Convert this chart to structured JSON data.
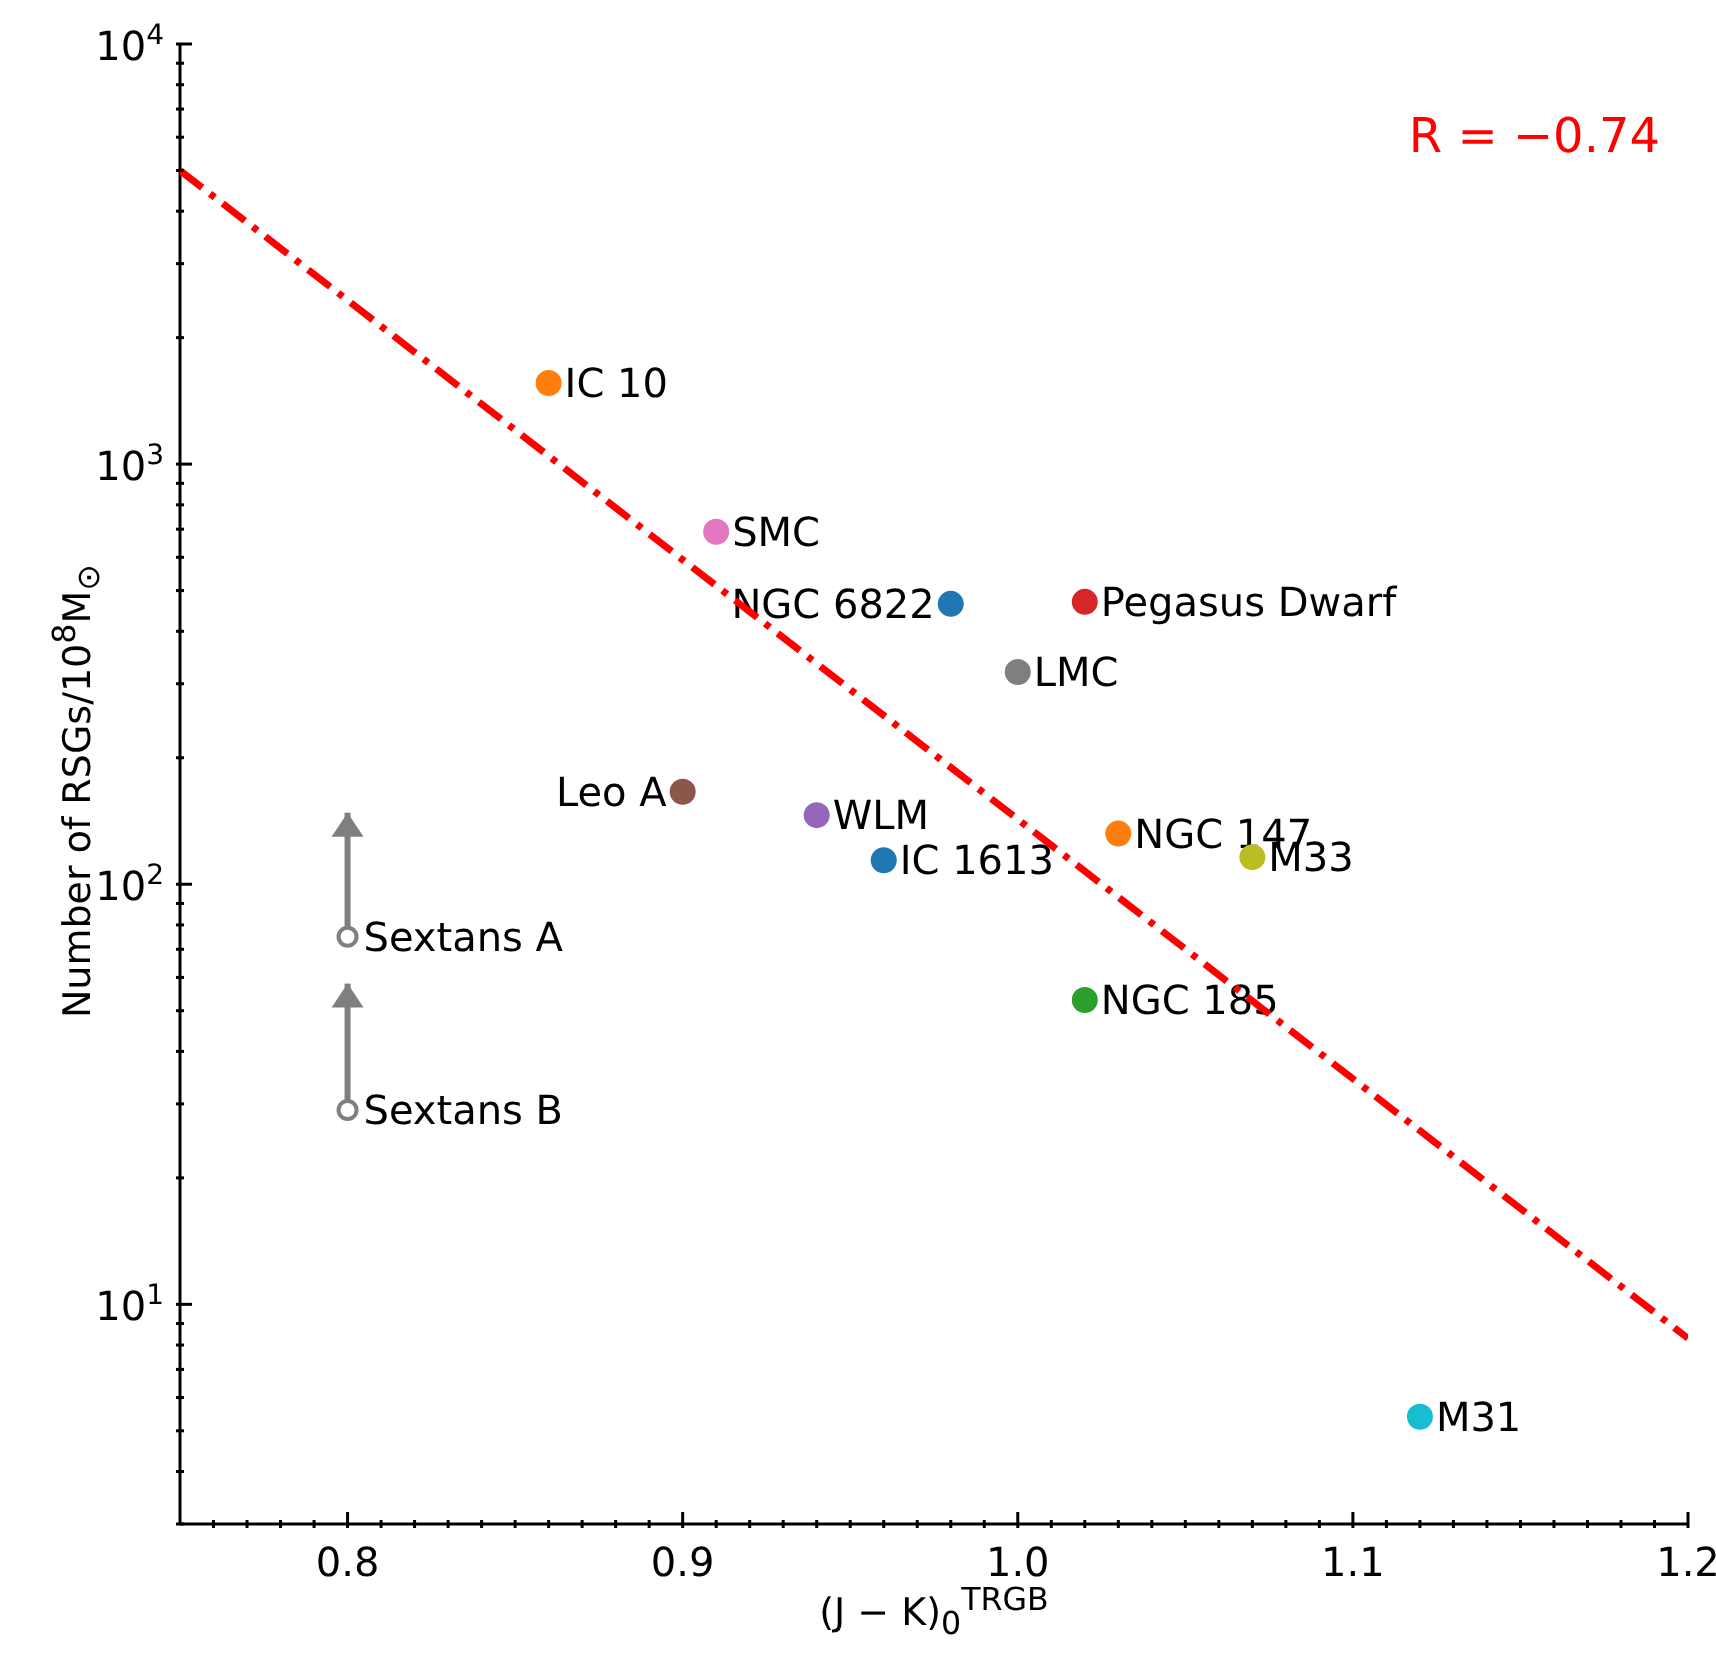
{
  "chart_data": {
    "type": "scatter",
    "xlabel": "(J − K)$_{0}$$^{TRGB}$",
    "ylabel": "Number of RSGs/10$^{8}$M$_{⊙}$",
    "log": "y",
    "grid": false,
    "legend": false,
    "marker": "circle",
    "annotations": [
      "R = −0.74"
    ],
    "xlim": [
      0.75,
      1.2
    ],
    "ylim": [
      3,
      10000
    ],
    "xticks": [
      {
        "value": 0.76,
        "label": null
      },
      {
        "value": 0.77,
        "label": null
      },
      {
        "value": 0.78,
        "label": null
      },
      {
        "value": 0.79,
        "label": null
      },
      0.8,
      {
        "value": 0.81,
        "label": null
      },
      {
        "value": 0.82,
        "label": null
      },
      {
        "value": 0.83,
        "label": null
      },
      {
        "value": 0.84,
        "label": null
      },
      {
        "value": 0.85,
        "label": null
      },
      {
        "value": 0.86,
        "label": null
      },
      {
        "value": 0.87,
        "label": null
      },
      {
        "value": 0.88,
        "label": null
      },
      {
        "value": 0.89,
        "label": null
      },
      0.9,
      {
        "value": 0.91,
        "label": null
      },
      {
        "value": 0.92,
        "label": null
      },
      {
        "value": 0.93,
        "label": null
      },
      {
        "value": 0.94,
        "label": null
      },
      {
        "value": 0.95,
        "label": null
      },
      {
        "value": 0.96,
        "label": null
      },
      {
        "value": 0.97,
        "label": null
      },
      {
        "value": 0.98,
        "label": null
      },
      {
        "value": 0.99,
        "label": null
      },
      {
        "value": 1,
        "label": "1.0"
      },
      {
        "value": 1.01,
        "label": null
      },
      {
        "value": 1.02,
        "label": null
      },
      {
        "value": 1.03,
        "label": null
      },
      {
        "value": 1.04,
        "label": null
      },
      {
        "value": 1.05,
        "label": null
      },
      {
        "value": 1.06,
        "label": null
      },
      {
        "value": 1.07,
        "label": null
      },
      {
        "value": 1.08,
        "label": null
      },
      {
        "value": 1.09,
        "label": null
      },
      1.1,
      {
        "value": 1.11,
        "label": null
      },
      {
        "value": 1.12,
        "label": null
      },
      {
        "value": 1.13,
        "label": null
      },
      {
        "value": 1.14,
        "label": null
      },
      {
        "value": 1.15,
        "label": null
      },
      {
        "value": 1.16,
        "label": null
      },
      {
        "value": 1.17,
        "label": null
      },
      {
        "value": 1.18,
        "label": null
      },
      {
        "value": 1.19,
        "label": null
      },
      1.2
    ],
    "yticks": [
      {
        "value": 3,
        "label": null
      },
      {
        "value": 4,
        "label": null
      },
      {
        "value": 5,
        "label": null
      },
      {
        "value": 6,
        "label": null
      },
      {
        "value": 7,
        "label": null
      },
      {
        "value": 8,
        "label": null
      },
      {
        "value": 9,
        "label": null
      },
      {
        "value": 10,
        "label": "10$^{1}$"
      },
      {
        "value": 20,
        "label": null
      },
      {
        "value": 30,
        "label": null
      },
      {
        "value": 40,
        "label": null
      },
      {
        "value": 50,
        "label": null
      },
      {
        "value": 60,
        "label": null
      },
      {
        "value": 70,
        "label": null
      },
      {
        "value": 80,
        "label": null
      },
      {
        "value": 90,
        "label": null
      },
      {
        "value": 100,
        "label": "10$^{2}$"
      },
      {
        "value": 200,
        "label": null
      },
      {
        "value": 300,
        "label": null
      },
      {
        "value": 400,
        "label": null
      },
      {
        "value": 500,
        "label": null
      },
      {
        "value": 600,
        "label": null
      },
      {
        "value": 700,
        "label": null
      },
      {
        "value": 800,
        "label": null
      },
      {
        "value": 900,
        "label": null
      },
      {
        "value": 1000,
        "label": "10$^{3}$"
      },
      {
        "value": 2000,
        "label": null
      },
      {
        "value": 3000,
        "label": null
      },
      {
        "value": 4000,
        "label": null
      },
      {
        "value": 5000,
        "label": null
      },
      {
        "value": 6000,
        "label": null
      },
      {
        "value": 7000,
        "label": null
      },
      {
        "value": 8000,
        "label": null
      },
      {
        "value": 9000,
        "label": null
      },
      {
        "value": 10000,
        "label": "10$^{4}$"
      }
    ],
    "series": [
      {
        "name": "IC 10",
        "color": "#ff7f0e",
        "x": [
          0.86
        ],
        "values": [
          1560
        ]
      },
      {
        "name": "SMC",
        "color": "#e377c2",
        "x": [
          0.91
        ],
        "values": [
          690
        ]
      },
      {
        "name": "NGC 6822",
        "color": "#1f77b4",
        "x": [
          0.98
        ],
        "values": [
          465
        ]
      },
      {
        "name": "Pegasus Dwarf",
        "color": "#d62728",
        "x": [
          1.02
        ],
        "values": [
          470
        ]
      },
      {
        "name": "LMC",
        "color": "#7f7f7f",
        "x": [
          1.0
        ],
        "values": [
          320
        ]
      },
      {
        "name": "Leo A",
        "color": "#8c564b",
        "x": [
          0.9
        ],
        "values": [
          166
        ]
      },
      {
        "name": "WLM",
        "color": "#9467bd",
        "x": [
          0.94
        ],
        "values": [
          146
        ]
      },
      {
        "name": "IC 1613",
        "color": "#1f77b4",
        "x": [
          0.96
        ],
        "values": [
          114
        ]
      },
      {
        "name": "NGC 147",
        "color": "#ff7f0e",
        "x": [
          1.03
        ],
        "values": [
          132
        ]
      },
      {
        "name": "M33",
        "color": "#bcbd22",
        "x": [
          1.07
        ],
        "values": [
          116
        ]
      },
      {
        "name": "NGC 185",
        "color": "#2ca02c",
        "x": [
          1.02
        ],
        "values": [
          53
        ]
      },
      {
        "name": "M31",
        "color": "#17becf",
        "x": [
          1.12
        ],
        "values": [
          5.4
        ]
      },
      {
        "name": "Sextans A",
        "color": "#7f7f7f",
        "x": [
          0.8
        ],
        "values": [
          75
        ],
        "errors": [
          [
            75,
            148
          ]
        ]
      },
      {
        "name": "Sextans B",
        "color": "#7f7f7f",
        "x": [
          0.8
        ],
        "values": [
          29
        ],
        "errors": [
          [
            29,
            58
          ]
        ]
      },
      {
        "type": "line",
        "color": "#ff0000",
        "line_style": "dashed",
        "marker": "none",
        "x": [
          0.75,
          1.2
        ],
        "values": [
          5000,
          8.3
        ]
      }
    ]
  }
}
